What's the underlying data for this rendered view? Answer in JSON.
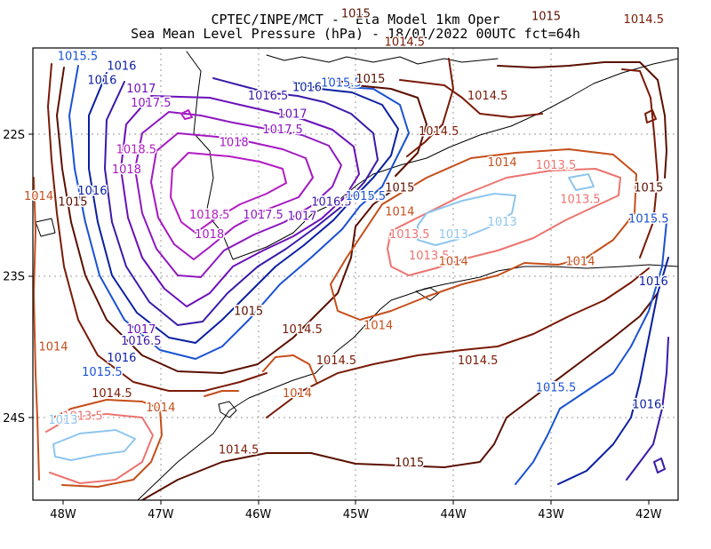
{
  "title_line1": "CPTEC/INPE/MCT -  Eta Model 1km Oper",
  "title_line2": "Sea Mean Level Pressure (hPa) - 18/01/2022 00UTC fct=64h",
  "x_ticks": [
    "48W",
    "47W",
    "46W",
    "45W",
    "44W",
    "43W",
    "42W"
  ],
  "y_ticks": [
    "22S",
    "23S",
    "24S"
  ],
  "colors": {
    "c1013": "#8ec6ee",
    "c1013_5": "#ec7470",
    "c1014": "#c54e1a",
    "c1014_5": "#7a1a06",
    "c1015": "#5a1000",
    "c1015_5": "#1a52d2",
    "c1016": "#0a1fa0",
    "c1016_5": "#3a1aa8",
    "c1017": "#6b10b8",
    "c1017_5": "#8e18c0",
    "c1018": "#a418c2",
    "c1018_5": "#b41cc2",
    "coast": "#000000",
    "grid": "#9a9a9a"
  },
  "contour_labels": [
    {
      "text": "1015.5",
      "lon": -47.85,
      "lat": -21.45,
      "level": "c1015_5"
    },
    {
      "text": "1016",
      "lon": -47.4,
      "lat": -21.52,
      "level": "c1016"
    },
    {
      "text": "1016",
      "lon": -47.6,
      "lat": -21.62,
      "level": "c1016"
    },
    {
      "text": "1017",
      "lon": -47.2,
      "lat": -21.68,
      "level": "c1017"
    },
    {
      "text": "1017.5",
      "lon": -47.1,
      "lat": -21.78,
      "level": "c1017_5"
    },
    {
      "text": "1016.5",
      "lon": -45.9,
      "lat": -21.73,
      "level": "c1016_5"
    },
    {
      "text": "1016",
      "lon": -45.5,
      "lat": -21.67,
      "level": "c1016"
    },
    {
      "text": "1015.5",
      "lon": -45.15,
      "lat": -21.64,
      "level": "c1015_5"
    },
    {
      "text": "1015",
      "lon": -44.85,
      "lat": -21.61,
      "level": "c1015"
    },
    {
      "text": "1017",
      "lon": -45.65,
      "lat": -21.86,
      "level": "c1017"
    },
    {
      "text": "1017.5",
      "lon": -45.75,
      "lat": -21.97,
      "level": "c1017_5"
    },
    {
      "text": "1018",
      "lon": -46.25,
      "lat": -22.06,
      "level": "c1018"
    },
    {
      "text": "1018.5",
      "lon": -47.25,
      "lat": -22.11,
      "level": "c1018_5"
    },
    {
      "text": "1018",
      "lon": -47.35,
      "lat": -22.25,
      "level": "c1018"
    },
    {
      "text": "1018.5",
      "lon": -46.5,
      "lat": -22.57,
      "level": "c1018_5"
    },
    {
      "text": "1018",
      "lon": -46.5,
      "lat": -22.71,
      "level": "c1018"
    },
    {
      "text": "1017.5",
      "lon": -45.95,
      "lat": -22.57,
      "level": "c1017_5"
    },
    {
      "text": "1017",
      "lon": -45.55,
      "lat": -22.58,
      "level": "c1017"
    },
    {
      "text": "1016.5",
      "lon": -45.25,
      "lat": -22.48,
      "level": "c1016_5"
    },
    {
      "text": "1015.5",
      "lon": -44.9,
      "lat": -22.44,
      "level": "c1015_5"
    },
    {
      "text": "1015",
      "lon": -44.55,
      "lat": -22.38,
      "level": "c1015"
    },
    {
      "text": "1014",
      "lon": -44.55,
      "lat": -22.55,
      "level": "c1014"
    },
    {
      "text": "1014",
      "lon": -48.25,
      "lat": -22.44,
      "level": "c1014"
    },
    {
      "text": "1016",
      "lon": -47.7,
      "lat": -22.4,
      "level": "c1016"
    },
    {
      "text": "1015",
      "lon": -47.9,
      "lat": -22.48,
      "level": "c1015"
    },
    {
      "text": "1015",
      "lon": -45.0,
      "lat": -21.15,
      "level": "c1015"
    },
    {
      "text": "1014.5",
      "lon": -44.5,
      "lat": -21.35,
      "level": "c1014_5"
    },
    {
      "text": "1015",
      "lon": -43.05,
      "lat": -21.17,
      "level": "c1015"
    },
    {
      "text": "1014.5",
      "lon": -42.05,
      "lat": -21.19,
      "level": "c1014_5"
    },
    {
      "text": "1014.5",
      "lon": -43.65,
      "lat": -21.73,
      "level": "c1014_5"
    },
    {
      "text": "1014.5",
      "lon": -44.15,
      "lat": -21.98,
      "level": "c1014_5"
    },
    {
      "text": "1014",
      "lon": -43.5,
      "lat": -22.2,
      "level": "c1014"
    },
    {
      "text": "1013.5",
      "lon": -42.95,
      "lat": -22.22,
      "level": "c1013_5"
    },
    {
      "text": "1013.5",
      "lon": -42.7,
      "lat": -22.46,
      "level": "c1013_5"
    },
    {
      "text": "1015",
      "lon": -42.0,
      "lat": -22.38,
      "level": "c1015"
    },
    {
      "text": "1013",
      "lon": -43.5,
      "lat": -22.62,
      "level": "c1013"
    },
    {
      "text": "1013.5",
      "lon": -44.45,
      "lat": -22.71,
      "level": "c1013_5"
    },
    {
      "text": "1013",
      "lon": -44.0,
      "lat": -22.71,
      "level": "c1013"
    },
    {
      "text": "1013.5",
      "lon": -44.25,
      "lat": -22.86,
      "level": "c1013_5"
    },
    {
      "text": "1014",
      "lon": -44.0,
      "lat": -22.9,
      "level": "c1014"
    },
    {
      "text": "1014",
      "lon": -42.7,
      "lat": -22.9,
      "level": "c1014"
    },
    {
      "text": "1015.5",
      "lon": -42.0,
      "lat": -22.6,
      "level": "c1015_5"
    },
    {
      "text": "1016",
      "lon": -41.95,
      "lat": -23.04,
      "level": "c1016"
    },
    {
      "text": "1015",
      "lon": -46.1,
      "lat": -23.25,
      "level": "c1015"
    },
    {
      "text": "1014.5",
      "lon": -45.55,
      "lat": -23.38,
      "level": "c1014_5"
    },
    {
      "text": "1014",
      "lon": -44.77,
      "lat": -23.35,
      "level": "c1014"
    },
    {
      "text": "1017",
      "lon": -47.2,
      "lat": -23.38,
      "level": "c1017"
    },
    {
      "text": "1016.5",
      "lon": -47.2,
      "lat": -23.46,
      "level": "c1016_5"
    },
    {
      "text": "1016",
      "lon": -47.4,
      "lat": -23.58,
      "level": "c1016"
    },
    {
      "text": "1015.5",
      "lon": -47.6,
      "lat": -23.68,
      "level": "c1015_5"
    },
    {
      "text": "1014.5",
      "lon": -47.5,
      "lat": -23.83,
      "level": "c1014_5"
    },
    {
      "text": "1014",
      "lon": -47.0,
      "lat": -23.93,
      "level": "c1014"
    },
    {
      "text": "1014",
      "lon": -45.6,
      "lat": -23.83,
      "level": "c1014"
    },
    {
      "text": "1014.5",
      "lon": -45.2,
      "lat": -23.6,
      "level": "c1014_5"
    },
    {
      "text": "1014.5",
      "lon": -43.75,
      "lat": -23.6,
      "level": "c1014_5"
    },
    {
      "text": "1014",
      "lon": -48.1,
      "lat": -23.5,
      "level": "c1014"
    },
    {
      "text": "1013.5",
      "lon": -47.8,
      "lat": -23.99,
      "level": "c1013_5"
    },
    {
      "text": "1013",
      "lon": -48.0,
      "lat": -24.02,
      "level": "c1013"
    },
    {
      "text": "1014.5",
      "lon": -46.2,
      "lat": -24.23,
      "level": "c1014_5"
    },
    {
      "text": "1015",
      "lon": -44.45,
      "lat": -24.32,
      "level": "c1015"
    },
    {
      "text": "1015.5",
      "lon": -42.95,
      "lat": -23.79,
      "level": "c1015_5"
    },
    {
      "text": "1016.",
      "lon": -42.0,
      "lat": -23.91,
      "level": "c1016"
    }
  ]
}
